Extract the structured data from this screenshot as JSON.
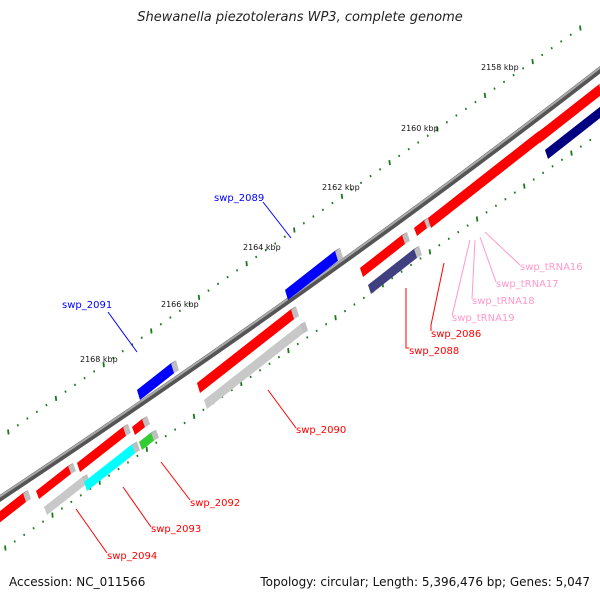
{
  "title": "Shewanella piezotolerans WP3, complete genome",
  "accession": "Accession: NC_011566",
  "topology": "Topology: circular; Length: 5,396,476 bp; Genes: 5,047",
  "colors": {
    "backbone": "#7a7a7a",
    "forward_gene": "#ff0000",
    "reverse_gene": "#c8c8c8",
    "blue_gene": "#0000ff",
    "navy_gene": "#000080",
    "slate_gene": "#404080",
    "cyan_gene": "#00ffff",
    "green_gene": "#33cc33",
    "trna": "#ff99cc",
    "tick": "#1a7a1a"
  },
  "kbp_labels": [
    {
      "id": "2158",
      "text": "2158 kbp"
    },
    {
      "id": "2160",
      "text": "2160 kbp"
    },
    {
      "id": "2162",
      "text": "2162 kbp"
    },
    {
      "id": "2164",
      "text": "2164 kbp"
    },
    {
      "id": "2166",
      "text": "2166 kbp"
    },
    {
      "id": "2168",
      "text": "2168 kbp"
    }
  ],
  "gene_labels": [
    {
      "id": "swp_2089",
      "text": "swp_2089",
      "color": "#0000ff"
    },
    {
      "id": "swp_2091",
      "text": "swp_2091",
      "color": "#0000ff"
    },
    {
      "id": "swp_2090",
      "text": "swp_2090",
      "color": "#ff0000"
    },
    {
      "id": "swp_2092",
      "text": "swp_2092",
      "color": "#ff0000"
    },
    {
      "id": "swp_2093",
      "text": "swp_2093",
      "color": "#ff0000"
    },
    {
      "id": "swp_2094",
      "text": "swp_2094",
      "color": "#ff0000"
    },
    {
      "id": "swp_2086",
      "text": "swp_2086",
      "color": "#ff0000"
    },
    {
      "id": "swp_2088",
      "text": "swp_2088",
      "color": "#ff0000"
    },
    {
      "id": "swp_tRNA16",
      "text": "swp_tRNA16",
      "color": "#ff99cc"
    },
    {
      "id": "swp_tRNA17",
      "text": "swp_tRNA17",
      "color": "#ff99cc"
    },
    {
      "id": "swp_tRNA18",
      "text": "swp_tRNA18",
      "color": "#ff99cc"
    },
    {
      "id": "swp_tRNA19",
      "text": "swp_tRNA19",
      "color": "#ff99cc"
    }
  ]
}
